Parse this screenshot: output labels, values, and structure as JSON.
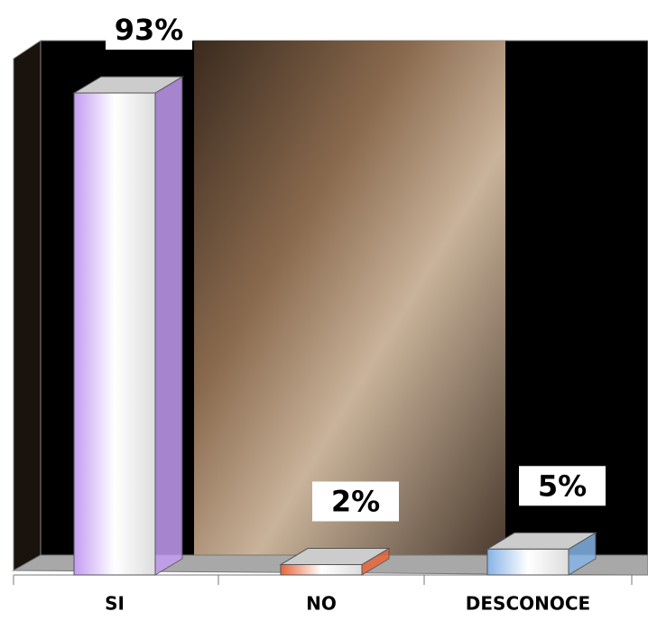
{
  "chart_data": {
    "type": "bar3d",
    "categories": [
      "SI",
      "NO",
      "DESCONOCE"
    ],
    "values": [
      93,
      2,
      5
    ],
    "value_labels": [
      "93%",
      "2%",
      "5%"
    ],
    "colors": [
      "#c49cf2",
      "#e8663a",
      "#86b4e6"
    ]
  }
}
